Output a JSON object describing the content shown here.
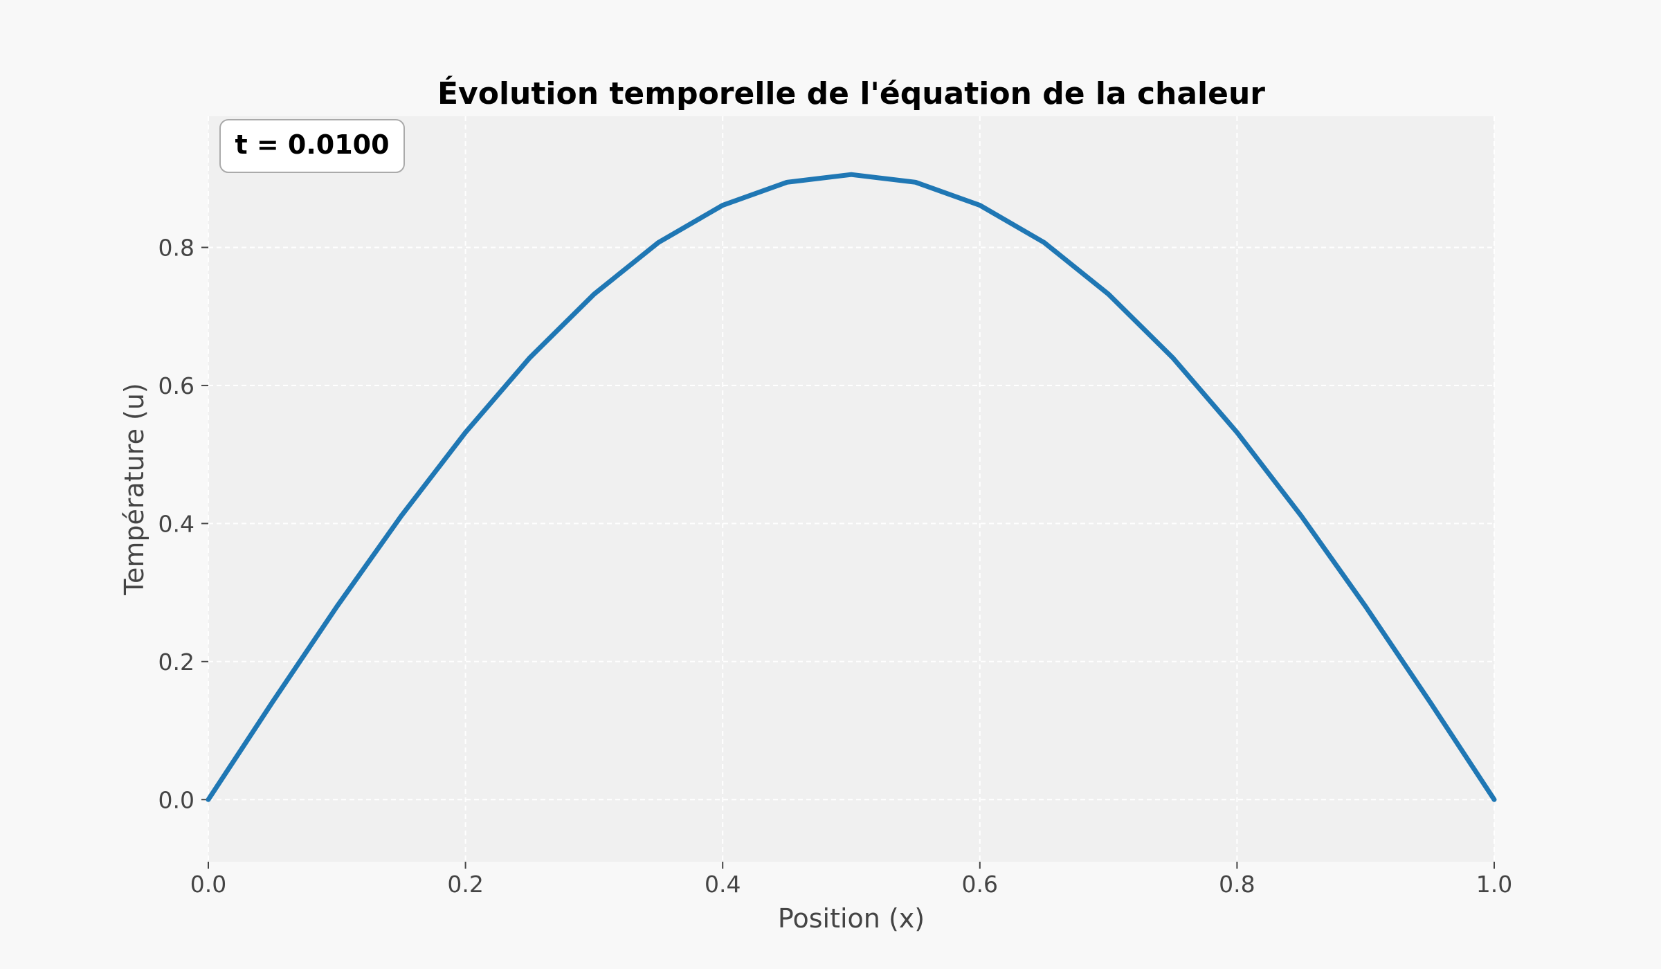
{
  "chart_data": {
    "type": "line",
    "title": "Évolution temporelle de l'équation de la chaleur",
    "xlabel": "Position (x)",
    "ylabel": "Température (u)",
    "xlim": [
      0.0,
      1.0
    ],
    "ylim": [
      -0.09,
      0.99
    ],
    "xticks": [
      "0.0",
      "0.2",
      "0.4",
      "0.6",
      "0.8",
      "1.0"
    ],
    "yticks": [
      "0.0",
      "0.2",
      "0.4",
      "0.6",
      "0.8"
    ],
    "grid": true,
    "annotation": "t = 0.0100",
    "series": [
      {
        "color": "#1f77b4",
        "x": [
          0.0,
          0.05,
          0.1,
          0.15,
          0.2,
          0.25,
          0.3,
          0.35,
          0.4,
          0.45,
          0.5,
          0.55,
          0.6,
          0.65,
          0.7,
          0.75,
          0.8,
          0.85,
          0.9,
          0.95,
          1.0
        ],
        "y": [
          0.0,
          0.1416,
          0.2797,
          0.4109,
          0.532,
          0.6402,
          0.7323,
          0.8071,
          0.8611,
          0.8944,
          0.9056,
          0.8944,
          0.8611,
          0.8071,
          0.7323,
          0.6402,
          0.532,
          0.4109,
          0.2797,
          0.1416,
          0.0
        ]
      }
    ]
  },
  "colors": {
    "figure_bg": "#f8f8f8",
    "plot_bg": "#f0f0f0",
    "grid": "#ffffff",
    "line": "#1f77b4"
  }
}
